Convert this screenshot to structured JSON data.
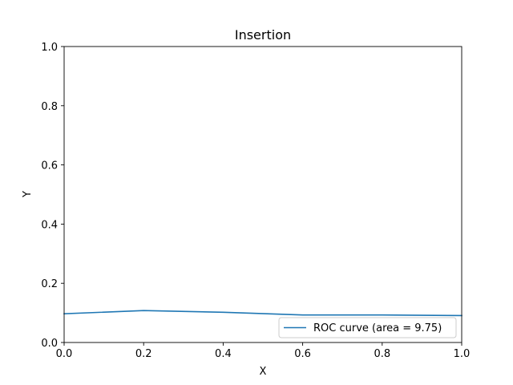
{
  "chart_data": {
    "type": "line",
    "title": "Insertion",
    "xlabel": "X",
    "ylabel": "Y",
    "xlim": [
      0,
      1
    ],
    "ylim": [
      0,
      1
    ],
    "xticks": [
      "0.0",
      "0.2",
      "0.4",
      "0.6",
      "0.8",
      "1.0"
    ],
    "yticks": [
      "0.0",
      "0.2",
      "0.4",
      "0.6",
      "0.8",
      "1.0"
    ],
    "grid": false,
    "legend_position": "lower right",
    "series": [
      {
        "name": "ROC curve (area = 9.75)",
        "color": "#1f77b4",
        "x": [
          0.0,
          0.2,
          0.4,
          0.6,
          0.8,
          1.0
        ],
        "y": [
          0.097,
          0.108,
          0.102,
          0.093,
          0.093,
          0.091
        ]
      }
    ]
  }
}
